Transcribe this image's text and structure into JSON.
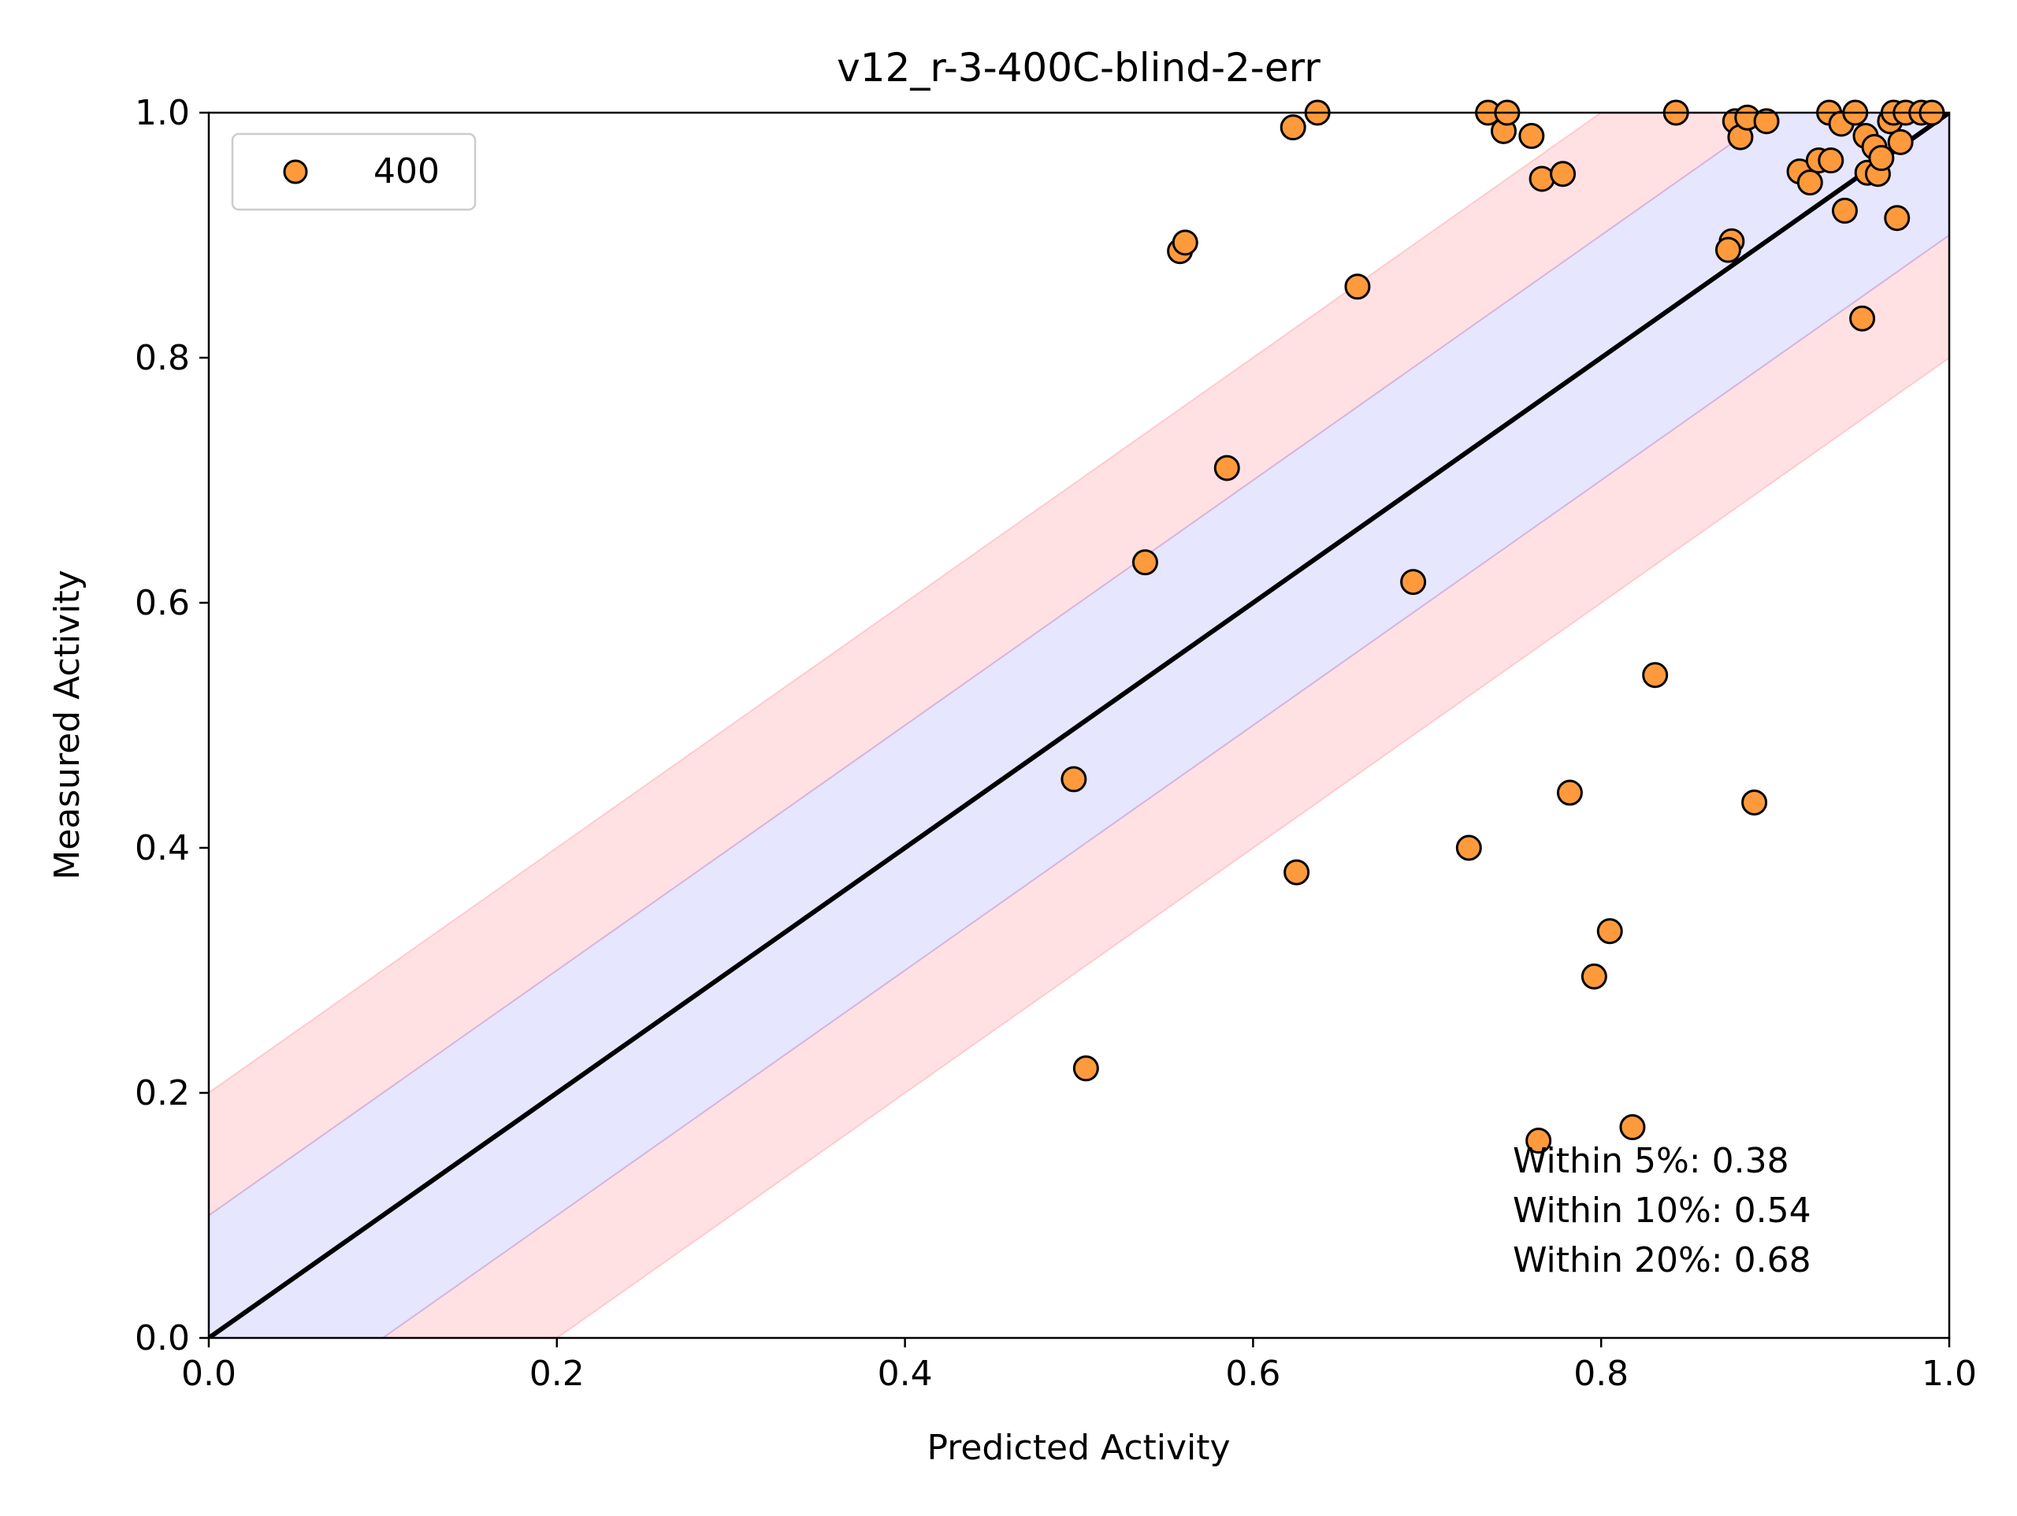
{
  "chart_data": {
    "type": "scatter",
    "title": "v12_r-3-400C-blind-2-err",
    "xlabel": "Predicted Activity",
    "ylabel": "Measured Activity",
    "xlim": [
      0.0,
      1.0
    ],
    "ylim": [
      0.0,
      1.0
    ],
    "xticks": [
      "0.0",
      "0.2",
      "0.4",
      "0.6",
      "0.8",
      "1.0"
    ],
    "yticks": [
      "0.0",
      "0.2",
      "0.4",
      "0.6",
      "0.8",
      "1.0"
    ],
    "grid": false,
    "legend_position": "top-left",
    "bands": [
      {
        "half_width": 0.1,
        "color": "#e6e6ff"
      },
      {
        "half_width": 0.2,
        "color": "#ffe1e4"
      }
    ],
    "reference_line": {
      "from": [
        0,
        0
      ],
      "to": [
        1,
        1
      ],
      "color": "#000000"
    },
    "annotations": [
      "Within 5%: 0.38",
      "Within 10%: 0.54",
      "Within 20%: 0.68"
    ],
    "series": [
      {
        "name": "400",
        "color": "#ff9a3c",
        "edge_color": "#000000",
        "points": [
          [
            0.623,
            0.988
          ],
          [
            0.637,
            1.0
          ],
          [
            0.558,
            0.887
          ],
          [
            0.561,
            0.894
          ],
          [
            0.66,
            0.858
          ],
          [
            0.585,
            0.71
          ],
          [
            0.538,
            0.633
          ],
          [
            0.692,
            0.617
          ],
          [
            0.497,
            0.456
          ],
          [
            0.504,
            0.22
          ],
          [
            0.625,
            0.38
          ],
          [
            0.724,
            0.4
          ],
          [
            0.735,
            1.0
          ],
          [
            0.744,
            0.985
          ],
          [
            0.746,
            1.0
          ],
          [
            0.76,
            0.981
          ],
          [
            0.766,
            0.946
          ],
          [
            0.778,
            0.95
          ],
          [
            0.782,
            0.445
          ],
          [
            0.764,
            0.161
          ],
          [
            0.796,
            0.295
          ],
          [
            0.805,
            0.332
          ],
          [
            0.818,
            0.172
          ],
          [
            0.831,
            0.541
          ],
          [
            0.843,
            1.0
          ],
          [
            0.875,
            0.895
          ],
          [
            0.873,
            0.888
          ],
          [
            0.877,
            0.993
          ],
          [
            0.88,
            0.98
          ],
          [
            0.884,
            0.996
          ],
          [
            0.888,
            0.437
          ],
          [
            0.895,
            0.993
          ],
          [
            0.914,
            0.952
          ],
          [
            0.92,
            0.943
          ],
          [
            0.925,
            0.961
          ],
          [
            0.931,
            1.0
          ],
          [
            0.932,
            0.961
          ],
          [
            0.938,
            0.991
          ],
          [
            0.94,
            0.92
          ],
          [
            0.946,
            1.0
          ],
          [
            0.95,
            0.832
          ],
          [
            0.952,
            0.981
          ],
          [
            0.953,
            0.951
          ],
          [
            0.957,
            0.972
          ],
          [
            0.959,
            0.95
          ],
          [
            0.961,
            0.963
          ],
          [
            0.966,
            0.993
          ],
          [
            0.968,
            1.0
          ],
          [
            0.97,
            0.914
          ],
          [
            0.972,
            0.976
          ],
          [
            0.975,
            1.0
          ],
          [
            0.984,
            1.0
          ],
          [
            0.99,
            1.0
          ]
        ]
      }
    ]
  }
}
